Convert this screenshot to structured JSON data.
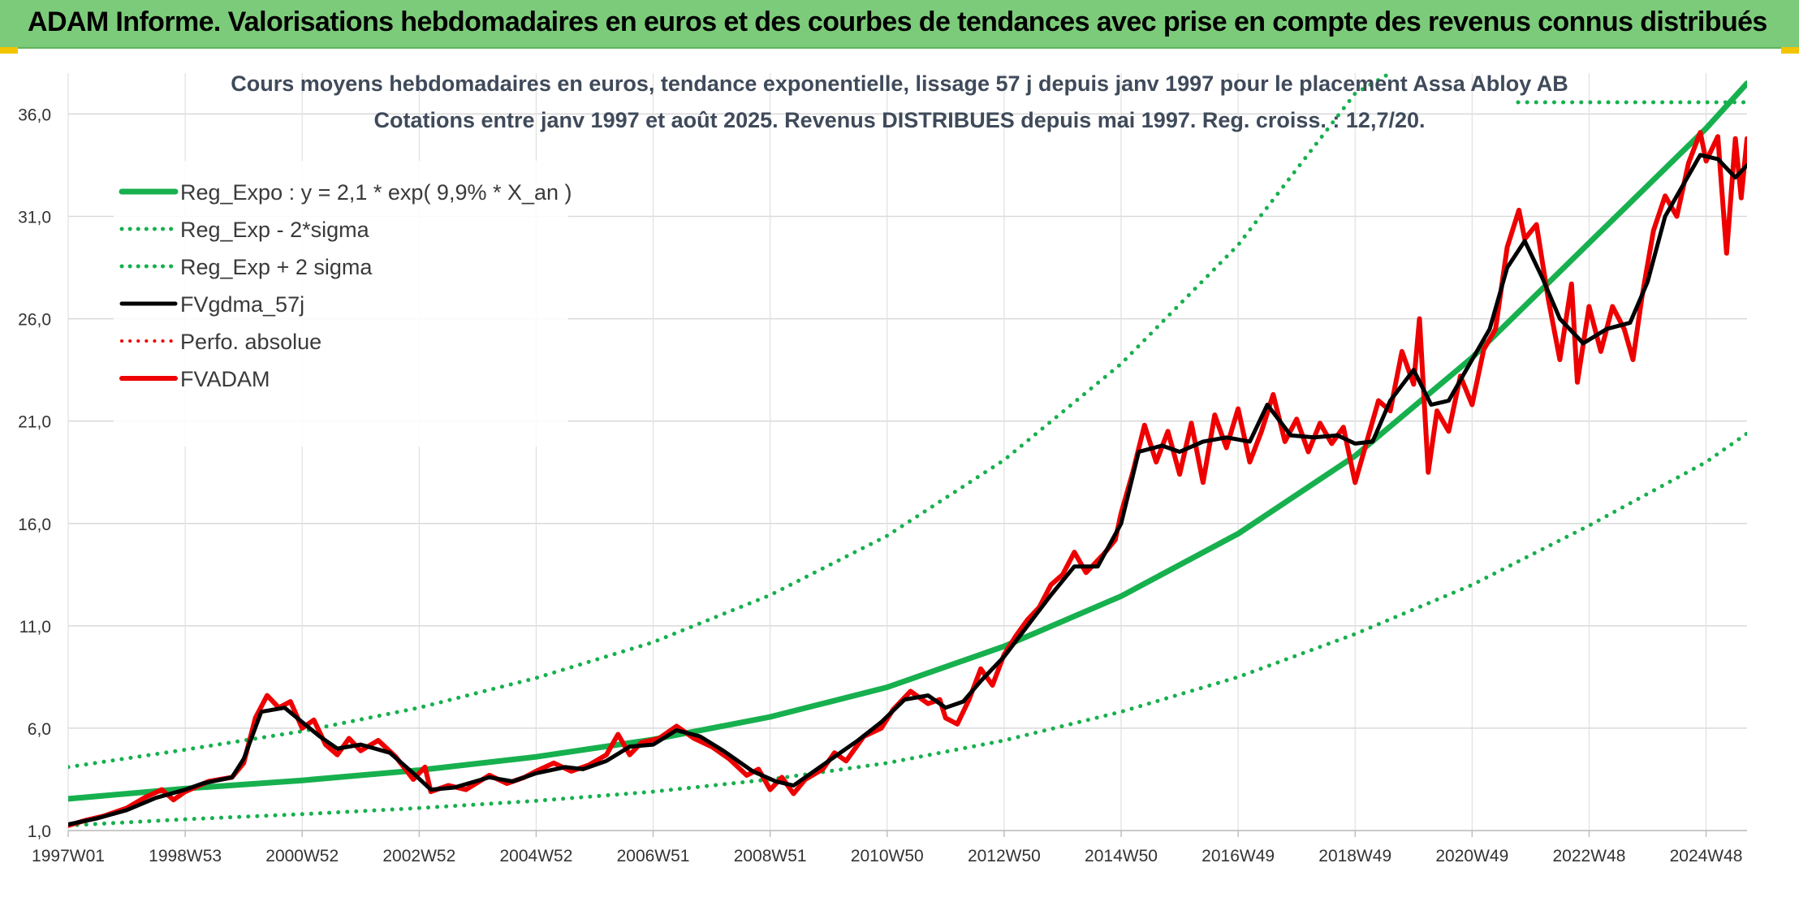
{
  "banner": {
    "title": "ADAM Informe. Valorisations hebdomadaires en euros et des courbes de tendances avec prise en compte des revenus connus distribués"
  },
  "colors": {
    "banner_bg": "#7ccb7a",
    "trend_green": "#17b04e",
    "price_red": "#ee0000",
    "smooth_black": "#000000",
    "corner_yellow": "#f2c400"
  },
  "chart_data": {
    "type": "line",
    "title": "Cours moyens hebdomadaires en euros, tendance exponentielle, lissage 57 j depuis janv 1997 pour le placement Assa Abloy AB",
    "subtitle": "Cotations entre janv 1997 et août 2025. Revenus DISTRIBUES depuis mai 1997. Reg. croiss. : 12,7/20.",
    "xlabel": "",
    "ylabel": "",
    "ylim": [
      1.0,
      38.0
    ],
    "xlim": [
      1997.0,
      2025.7
    ],
    "y_ticks": [
      "1,0",
      "6,0",
      "11,0",
      "16,0",
      "21,0",
      "26,0",
      "31,0",
      "36,0"
    ],
    "x_ticks": [
      {
        "label": "1997W01",
        "t": 1997.0
      },
      {
        "label": "1998W53",
        "t": 1999.0
      },
      {
        "label": "2000W52",
        "t": 2001.0
      },
      {
        "label": "2002W52",
        "t": 2003.0
      },
      {
        "label": "2004W52",
        "t": 2005.0
      },
      {
        "label": "2006W51",
        "t": 2007.0
      },
      {
        "label": "2008W51",
        "t": 2009.0
      },
      {
        "label": "2010W50",
        "t": 2011.0
      },
      {
        "label": "2012W50",
        "t": 2013.0
      },
      {
        "label": "2014W50",
        "t": 2015.0
      },
      {
        "label": "2016W49",
        "t": 2017.0
      },
      {
        "label": "2018W49",
        "t": 2019.0
      },
      {
        "label": "2020W49",
        "t": 2021.0
      },
      {
        "label": "2022W48",
        "t": 2023.0
      },
      {
        "label": "2024W48",
        "t": 2025.0
      }
    ],
    "grid": true,
    "legend_position": "top-left",
    "legend": [
      {
        "name": "Reg_Expo : y = 2,1 * exp( 9,9% *  X_an )",
        "style": "solid",
        "color": "#17b04e",
        "width": 7
      },
      {
        "name": "Reg_Exp - 2*sigma",
        "style": "dotted",
        "color": "#17b04e",
        "width": 5
      },
      {
        "name": "Reg_Exp + 2 sigma",
        "style": "dotted",
        "color": "#17b04e",
        "width": 5
      },
      {
        "name": "FVgdma_57j",
        "style": "solid",
        "color": "#000000",
        "width": 5
      },
      {
        "name": "Perfo. absolue",
        "style": "dotted",
        "color": "#ee0000",
        "width": 4
      },
      {
        "name": "FVADAM",
        "style": "solid",
        "color": "#ee0000",
        "width": 6
      }
    ],
    "series": [
      {
        "name": "Reg_Expo : y = 2,1 * exp( 9,9% *  X_an )",
        "style": "solid",
        "points": [
          [
            1997.0,
            2.55
          ],
          [
            1999.0,
            3.05
          ],
          [
            2001.0,
            3.45
          ],
          [
            2003.0,
            3.95
          ],
          [
            2005.0,
            4.6
          ],
          [
            2007.0,
            5.45
          ],
          [
            2009.0,
            6.55
          ],
          [
            2011.0,
            8.0
          ],
          [
            2013.0,
            10.0
          ],
          [
            2015.0,
            12.45
          ],
          [
            2017.0,
            15.5
          ],
          [
            2019.0,
            19.3
          ],
          [
            2021.0,
            24.1
          ],
          [
            2023.0,
            29.7
          ],
          [
            2025.0,
            35.3
          ],
          [
            2025.7,
            37.5
          ]
        ]
      },
      {
        "name": "Reg_Exp - 2*sigma",
        "style": "dotted",
        "points": [
          [
            1997.0,
            1.25
          ],
          [
            1999.0,
            1.55
          ],
          [
            2001.0,
            1.8
          ],
          [
            2003.0,
            2.1
          ],
          [
            2005.0,
            2.45
          ],
          [
            2007.0,
            2.9
          ],
          [
            2009.0,
            3.5
          ],
          [
            2011.0,
            4.3
          ],
          [
            2013.0,
            5.4
          ],
          [
            2015.0,
            6.8
          ],
          [
            2017.0,
            8.5
          ],
          [
            2019.0,
            10.6
          ],
          [
            2021.0,
            13.0
          ],
          [
            2023.0,
            15.9
          ],
          [
            2025.0,
            19.0
          ],
          [
            2025.7,
            20.4
          ]
        ]
      },
      {
        "name": "Reg_Exp + 2 sigma",
        "style": "dotted",
        "points": [
          [
            1997.0,
            4.1
          ],
          [
            1999.0,
            4.95
          ],
          [
            2001.0,
            5.85
          ],
          [
            2003.0,
            7.0
          ],
          [
            2005.0,
            8.45
          ],
          [
            2007.0,
            10.2
          ],
          [
            2009.0,
            12.5
          ],
          [
            2011.0,
            15.4
          ],
          [
            2013.0,
            19.1
          ],
          [
            2015.0,
            23.8
          ],
          [
            2017.0,
            29.6
          ],
          [
            2019.0,
            37.0
          ],
          [
            2019.6,
            38.0
          ]
        ]
      },
      {
        "name": "FVgdma_57j",
        "style": "solid",
        "points": [
          [
            1997.0,
            1.3
          ],
          [
            1997.5,
            1.6
          ],
          [
            1998.0,
            2.0
          ],
          [
            1998.5,
            2.6
          ],
          [
            1999.0,
            3.0
          ],
          [
            1999.3,
            3.3
          ],
          [
            1999.8,
            3.6
          ],
          [
            2000.0,
            4.5
          ],
          [
            2000.3,
            6.8
          ],
          [
            2000.7,
            7.0
          ],
          [
            2001.0,
            6.3
          ],
          [
            2001.3,
            5.6
          ],
          [
            2001.6,
            5.0
          ],
          [
            2002.0,
            5.2
          ],
          [
            2002.5,
            4.8
          ],
          [
            2002.9,
            3.8
          ],
          [
            2003.2,
            3.0
          ],
          [
            2003.6,
            3.1
          ],
          [
            2004.2,
            3.6
          ],
          [
            2004.6,
            3.4
          ],
          [
            2005.0,
            3.8
          ],
          [
            2005.5,
            4.1
          ],
          [
            2005.8,
            4.0
          ],
          [
            2006.2,
            4.4
          ],
          [
            2006.6,
            5.1
          ],
          [
            2007.0,
            5.2
          ],
          [
            2007.4,
            5.9
          ],
          [
            2007.8,
            5.6
          ],
          [
            2008.2,
            4.9
          ],
          [
            2008.7,
            3.9
          ],
          [
            2009.1,
            3.4
          ],
          [
            2009.4,
            3.2
          ],
          [
            2009.8,
            4.0
          ],
          [
            2010.1,
            4.6
          ],
          [
            2010.5,
            5.4
          ],
          [
            2010.9,
            6.3
          ],
          [
            2011.3,
            7.4
          ],
          [
            2011.7,
            7.6
          ],
          [
            2012.0,
            7.0
          ],
          [
            2012.3,
            7.3
          ],
          [
            2012.6,
            8.3
          ],
          [
            2013.0,
            9.5
          ],
          [
            2013.4,
            11.0
          ],
          [
            2013.8,
            12.5
          ],
          [
            2014.2,
            13.9
          ],
          [
            2014.6,
            13.9
          ],
          [
            2015.0,
            16.0
          ],
          [
            2015.3,
            19.5
          ],
          [
            2015.7,
            19.8
          ],
          [
            2016.0,
            19.5
          ],
          [
            2016.4,
            20.0
          ],
          [
            2016.8,
            20.2
          ],
          [
            2017.2,
            20.0
          ],
          [
            2017.5,
            21.8
          ],
          [
            2017.9,
            20.3
          ],
          [
            2018.3,
            20.2
          ],
          [
            2018.7,
            20.3
          ],
          [
            2019.0,
            19.9
          ],
          [
            2019.3,
            20.0
          ],
          [
            2019.6,
            22.0
          ],
          [
            2020.0,
            23.5
          ],
          [
            2020.3,
            21.8
          ],
          [
            2020.6,
            22.0
          ],
          [
            2020.9,
            23.5
          ],
          [
            2021.3,
            25.5
          ],
          [
            2021.6,
            28.5
          ],
          [
            2021.9,
            29.8
          ],
          [
            2022.2,
            28.0
          ],
          [
            2022.5,
            26.0
          ],
          [
            2022.9,
            24.8
          ],
          [
            2023.3,
            25.5
          ],
          [
            2023.7,
            25.8
          ],
          [
            2024.0,
            27.8
          ],
          [
            2024.3,
            31.0
          ],
          [
            2024.6,
            32.5
          ],
          [
            2024.9,
            34.0
          ],
          [
            2025.2,
            33.8
          ],
          [
            2025.5,
            32.9
          ],
          [
            2025.7,
            33.5
          ]
        ]
      },
      {
        "name": "FVADAM",
        "style": "solid",
        "points": [
          [
            1997.0,
            1.25
          ],
          [
            1997.3,
            1.5
          ],
          [
            1997.6,
            1.7
          ],
          [
            1998.0,
            2.1
          ],
          [
            1998.3,
            2.6
          ],
          [
            1998.6,
            3.0
          ],
          [
            1998.8,
            2.5
          ],
          [
            1999.0,
            2.9
          ],
          [
            1999.4,
            3.4
          ],
          [
            1999.8,
            3.6
          ],
          [
            2000.0,
            4.3
          ],
          [
            2000.2,
            6.5
          ],
          [
            2000.4,
            7.6
          ],
          [
            2000.6,
            7.0
          ],
          [
            2000.8,
            7.3
          ],
          [
            2001.0,
            6.0
          ],
          [
            2001.2,
            6.4
          ],
          [
            2001.4,
            5.2
          ],
          [
            2001.6,
            4.7
          ],
          [
            2001.8,
            5.5
          ],
          [
            2002.0,
            4.9
          ],
          [
            2002.3,
            5.4
          ],
          [
            2002.6,
            4.6
          ],
          [
            2002.9,
            3.5
          ],
          [
            2003.1,
            4.1
          ],
          [
            2003.2,
            2.9
          ],
          [
            2003.5,
            3.2
          ],
          [
            2003.8,
            3.0
          ],
          [
            2004.2,
            3.7
          ],
          [
            2004.5,
            3.3
          ],
          [
            2004.8,
            3.6
          ],
          [
            2005.0,
            3.9
          ],
          [
            2005.3,
            4.3
          ],
          [
            2005.6,
            3.9
          ],
          [
            2005.9,
            4.2
          ],
          [
            2006.2,
            4.7
          ],
          [
            2006.4,
            5.7
          ],
          [
            2006.6,
            4.7
          ],
          [
            2006.8,
            5.3
          ],
          [
            2007.1,
            5.5
          ],
          [
            2007.4,
            6.1
          ],
          [
            2007.7,
            5.5
          ],
          [
            2008.0,
            5.1
          ],
          [
            2008.3,
            4.5
          ],
          [
            2008.6,
            3.7
          ],
          [
            2008.8,
            4.0
          ],
          [
            2009.0,
            3.0
          ],
          [
            2009.2,
            3.6
          ],
          [
            2009.4,
            2.8
          ],
          [
            2009.6,
            3.5
          ],
          [
            2009.9,
            4.0
          ],
          [
            2010.1,
            4.8
          ],
          [
            2010.3,
            4.4
          ],
          [
            2010.6,
            5.6
          ],
          [
            2010.9,
            6.0
          ],
          [
            2011.1,
            6.9
          ],
          [
            2011.4,
            7.8
          ],
          [
            2011.7,
            7.2
          ],
          [
            2011.9,
            7.4
          ],
          [
            2012.0,
            6.5
          ],
          [
            2012.2,
            6.2
          ],
          [
            2012.4,
            7.4
          ],
          [
            2012.6,
            8.9
          ],
          [
            2012.8,
            8.1
          ],
          [
            2013.0,
            9.6
          ],
          [
            2013.2,
            10.5
          ],
          [
            2013.4,
            11.3
          ],
          [
            2013.6,
            11.9
          ],
          [
            2013.8,
            13.0
          ],
          [
            2014.0,
            13.5
          ],
          [
            2014.2,
            14.6
          ],
          [
            2014.4,
            13.6
          ],
          [
            2014.7,
            14.5
          ],
          [
            2014.9,
            15.2
          ],
          [
            2015.0,
            16.5
          ],
          [
            2015.2,
            18.5
          ],
          [
            2015.4,
            20.8
          ],
          [
            2015.6,
            19.0
          ],
          [
            2015.8,
            20.5
          ],
          [
            2016.0,
            18.4
          ],
          [
            2016.2,
            20.9
          ],
          [
            2016.4,
            18.0
          ],
          [
            2016.6,
            21.3
          ],
          [
            2016.8,
            19.7
          ],
          [
            2017.0,
            21.6
          ],
          [
            2017.2,
            19.0
          ],
          [
            2017.4,
            20.5
          ],
          [
            2017.6,
            22.3
          ],
          [
            2017.8,
            20.0
          ],
          [
            2018.0,
            21.1
          ],
          [
            2018.2,
            19.5
          ],
          [
            2018.4,
            20.9
          ],
          [
            2018.6,
            19.9
          ],
          [
            2018.8,
            20.7
          ],
          [
            2019.0,
            18.0
          ],
          [
            2019.2,
            20.0
          ],
          [
            2019.4,
            22.0
          ],
          [
            2019.6,
            21.5
          ],
          [
            2019.8,
            24.4
          ],
          [
            2020.0,
            22.8
          ],
          [
            2020.1,
            26.0
          ],
          [
            2020.25,
            18.5
          ],
          [
            2020.4,
            21.5
          ],
          [
            2020.6,
            20.5
          ],
          [
            2020.8,
            23.2
          ],
          [
            2021.0,
            21.8
          ],
          [
            2021.2,
            24.5
          ],
          [
            2021.4,
            25.5
          ],
          [
            2021.6,
            29.5
          ],
          [
            2021.8,
            31.3
          ],
          [
            2021.9,
            29.9
          ],
          [
            2022.1,
            30.6
          ],
          [
            2022.3,
            27.0
          ],
          [
            2022.5,
            24.0
          ],
          [
            2022.7,
            27.7
          ],
          [
            2022.8,
            22.9
          ],
          [
            2023.0,
            26.6
          ],
          [
            2023.2,
            24.4
          ],
          [
            2023.4,
            26.6
          ],
          [
            2023.6,
            25.5
          ],
          [
            2023.75,
            24.0
          ],
          [
            2023.9,
            27.0
          ],
          [
            2024.1,
            30.3
          ],
          [
            2024.3,
            32.0
          ],
          [
            2024.5,
            31.0
          ],
          [
            2024.7,
            33.6
          ],
          [
            2024.9,
            35.1
          ],
          [
            2025.0,
            33.7
          ],
          [
            2025.2,
            34.9
          ],
          [
            2025.35,
            29.2
          ],
          [
            2025.5,
            34.8
          ],
          [
            2025.6,
            31.9
          ],
          [
            2025.7,
            34.8
          ]
        ]
      }
    ]
  }
}
